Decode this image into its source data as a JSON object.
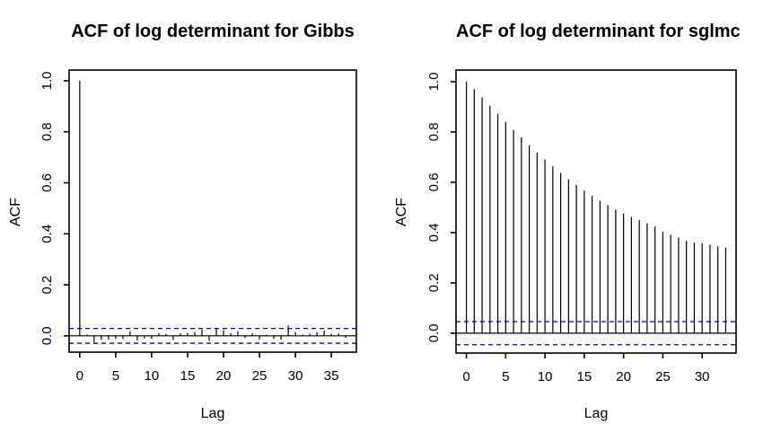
{
  "figure": {
    "background": "#ffffff"
  },
  "colors": {
    "bar": "#000000",
    "axis": "#000000",
    "text": "#000000",
    "ci_line": "#0000cd"
  },
  "chart_data": [
    {
      "type": "bar",
      "title": "ACF of log determinant for Gibbs",
      "xlabel": "Lag",
      "ylabel": "ACF",
      "x": [
        0,
        1,
        2,
        3,
        4,
        5,
        6,
        7,
        8,
        9,
        10,
        11,
        12,
        13,
        14,
        15,
        16,
        17,
        18,
        19,
        20,
        21,
        22,
        23,
        24,
        25,
        26,
        27,
        28,
        29,
        30,
        31,
        32,
        33,
        34,
        35,
        36,
        37
      ],
      "values": [
        1.0,
        0.005,
        -0.025,
        -0.015,
        -0.015,
        -0.012,
        -0.012,
        0.018,
        -0.018,
        -0.01,
        -0.012,
        0.01,
        0.008,
        -0.016,
        0.01,
        0.012,
        0.015,
        0.025,
        -0.02,
        0.03,
        0.022,
        0.01,
        0.018,
        -0.008,
        0.01,
        -0.014,
        0.005,
        -0.012,
        -0.015,
        0.041,
        0.015,
        0.005,
        0.008,
        0.015,
        0.02,
        0.008,
        0.01,
        -0.008
      ],
      "conf_int": 0.029,
      "xlim": [
        -1.48,
        38.48
      ],
      "ylim": [
        -0.064,
        1.042
      ],
      "x_ticks": [
        0,
        5,
        10,
        15,
        20,
        25,
        30,
        35
      ],
      "y_ticks": [
        0.0,
        0.2,
        0.4,
        0.6,
        0.8,
        1.0
      ],
      "grid": false,
      "legend": null
    },
    {
      "type": "bar",
      "title": "ACF of log determinant for sglmc",
      "xlabel": "Lag",
      "ylabel": "ACF",
      "x": [
        0,
        1,
        2,
        3,
        4,
        5,
        6,
        7,
        8,
        9,
        10,
        11,
        12,
        13,
        14,
        15,
        16,
        17,
        18,
        19,
        20,
        21,
        22,
        23,
        24,
        25,
        26,
        27,
        28,
        29,
        30,
        31,
        32,
        33
      ],
      "values": [
        1.0,
        0.97,
        0.937,
        0.904,
        0.872,
        0.84,
        0.808,
        0.778,
        0.748,
        0.718,
        0.69,
        0.663,
        0.637,
        0.612,
        0.589,
        0.567,
        0.546,
        0.527,
        0.509,
        0.492,
        0.476,
        0.462,
        0.45,
        0.437,
        0.424,
        0.404,
        0.391,
        0.38,
        0.368,
        0.361,
        0.357,
        0.352,
        0.345,
        0.34
      ],
      "conf_int": 0.046,
      "xlim": [
        -1.32,
        34.32
      ],
      "ylim": [
        -0.079,
        1.046
      ],
      "x_ticks": [
        0,
        5,
        10,
        15,
        20,
        25,
        30
      ],
      "y_ticks": [
        0.0,
        0.2,
        0.4,
        0.6,
        0.8,
        1.0
      ],
      "grid": false,
      "legend": null
    }
  ]
}
